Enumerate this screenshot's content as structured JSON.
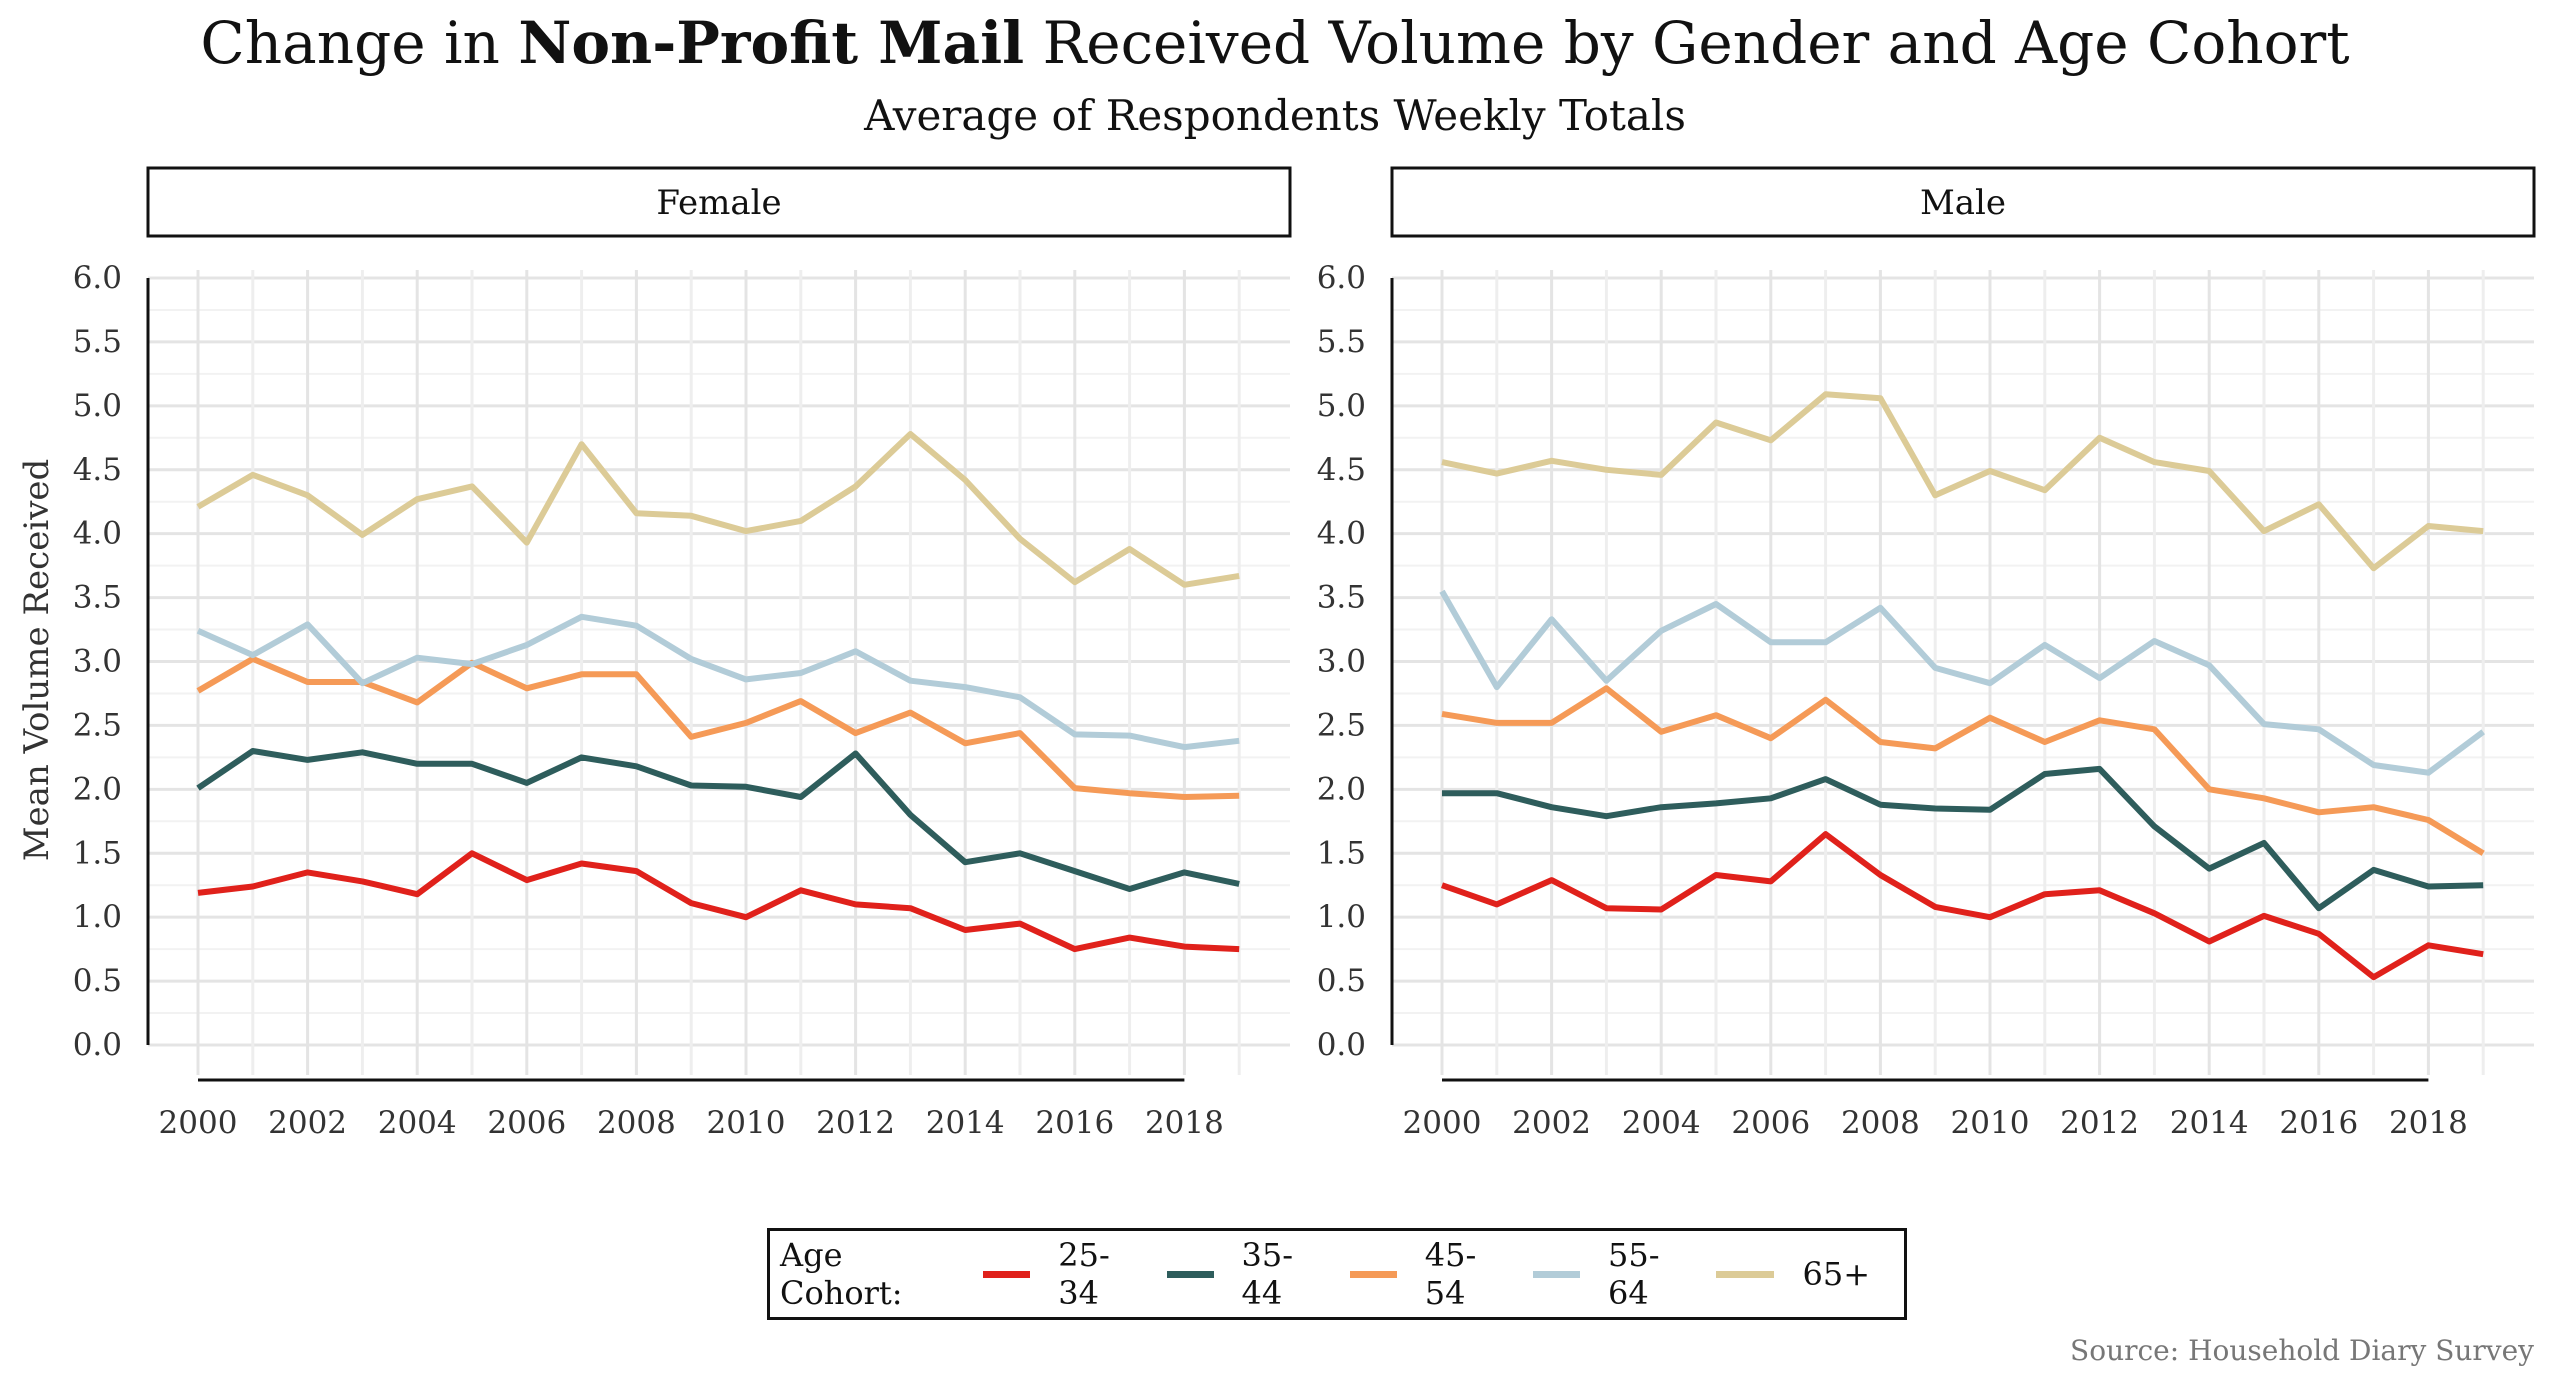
{
  "title": {
    "prefix": "Change in ",
    "bold": "Non-Profit Mail",
    "suffix": " Received Volume by Gender and Age Cohort"
  },
  "subtitle": "Average of Respondents Weekly Totals",
  "source": "Source: Household Diary Survey",
  "legend": {
    "title": "Age Cohort:",
    "items": [
      {
        "label": "25-34",
        "color": "#e0211b"
      },
      {
        "label": "35-44",
        "color": "#2e5d5c"
      },
      {
        "label": "45-54",
        "color": "#f59a57"
      },
      {
        "label": "55-64",
        "color": "#b2ccd8"
      },
      {
        "label": "65+",
        "color": "#dccb97"
      }
    ]
  },
  "chart_data": {
    "type": "line",
    "ylabel": "Mean Volume Received",
    "xlabel": "",
    "ylim": [
      0,
      6
    ],
    "yticks": [
      "0.0",
      "0.5",
      "1.0",
      "1.5",
      "2.0",
      "2.5",
      "3.0",
      "3.5",
      "4.0",
      "4.5",
      "5.0",
      "5.5",
      "6.0"
    ],
    "xlim": [
      2000,
      2019
    ],
    "xticks": [
      "2000",
      "2002",
      "2004",
      "2006",
      "2008",
      "2010",
      "2012",
      "2014",
      "2016",
      "2018"
    ],
    "grid": true,
    "legend_position": "bottom",
    "x": [
      2000,
      2001,
      2002,
      2003,
      2004,
      2005,
      2006,
      2007,
      2008,
      2009,
      2010,
      2011,
      2012,
      2013,
      2014,
      2015,
      2016,
      2017,
      2018,
      2019
    ],
    "panels": [
      {
        "name": "Female",
        "series": [
          {
            "name": "25-34",
            "values": [
              1.19,
              1.24,
              1.35,
              1.28,
              1.18,
              1.5,
              1.29,
              1.42,
              1.36,
              1.11,
              1.0,
              1.21,
              1.1,
              1.07,
              0.9,
              0.95,
              0.75,
              0.84,
              0.77,
              0.75
            ]
          },
          {
            "name": "35-44",
            "values": [
              2.01,
              2.3,
              2.23,
              2.29,
              2.2,
              2.2,
              2.05,
              2.25,
              2.18,
              2.03,
              2.02,
              1.94,
              2.28,
              1.8,
              1.43,
              1.5,
              1.36,
              1.22,
              1.35,
              1.26
            ]
          },
          {
            "name": "45-54",
            "values": [
              2.77,
              3.02,
              2.84,
              2.84,
              2.68,
              2.99,
              2.79,
              2.9,
              2.9,
              2.41,
              2.52,
              2.69,
              2.44,
              2.6,
              2.36,
              2.44,
              2.01,
              1.97,
              1.94,
              1.95
            ]
          },
          {
            "name": "55-64",
            "values": [
              3.24,
              3.05,
              3.29,
              2.83,
              3.03,
              2.98,
              3.13,
              3.35,
              3.28,
              3.02,
              2.86,
              2.91,
              3.08,
              2.85,
              2.8,
              2.72,
              2.43,
              2.42,
              2.33,
              2.38
            ]
          },
          {
            "name": "65+",
            "values": [
              4.21,
              4.46,
              4.3,
              3.99,
              4.27,
              4.37,
              3.93,
              4.7,
              4.16,
              4.14,
              4.02,
              4.1,
              4.37,
              4.78,
              4.42,
              3.96,
              3.62,
              3.88,
              3.6,
              3.67
            ]
          }
        ]
      },
      {
        "name": "Male",
        "series": [
          {
            "name": "25-34",
            "values": [
              1.25,
              1.1,
              1.29,
              1.07,
              1.06,
              1.33,
              1.28,
              1.65,
              1.33,
              1.08,
              1.0,
              1.18,
              1.21,
              1.03,
              0.81,
              1.01,
              0.87,
              0.53,
              0.78,
              0.71
            ]
          },
          {
            "name": "35-44",
            "values": [
              1.97,
              1.97,
              1.86,
              1.79,
              1.86,
              1.89,
              1.93,
              2.08,
              1.88,
              1.85,
              1.84,
              2.12,
              2.16,
              1.71,
              1.38,
              1.58,
              1.07,
              1.37,
              1.24,
              1.25
            ]
          },
          {
            "name": "45-54",
            "values": [
              2.59,
              2.52,
              2.52,
              2.79,
              2.45,
              2.58,
              2.4,
              2.7,
              2.37,
              2.32,
              2.56,
              2.37,
              2.54,
              2.47,
              2.0,
              1.93,
              1.82,
              1.86,
              1.76,
              1.5
            ]
          },
          {
            "name": "55-64",
            "values": [
              3.55,
              2.8,
              3.33,
              2.85,
              3.24,
              3.45,
              3.15,
              3.15,
              3.42,
              2.95,
              2.83,
              3.13,
              2.87,
              3.16,
              2.97,
              2.51,
              2.47,
              2.19,
              2.13,
              2.45
            ]
          },
          {
            "name": "65+",
            "values": [
              4.56,
              4.47,
              4.57,
              4.5,
              4.46,
              4.87,
              4.73,
              5.09,
              5.06,
              4.3,
              4.49,
              4.34,
              4.75,
              4.56,
              4.49,
              4.02,
              4.23,
              3.73,
              4.06,
              4.02
            ]
          }
        ]
      }
    ]
  }
}
